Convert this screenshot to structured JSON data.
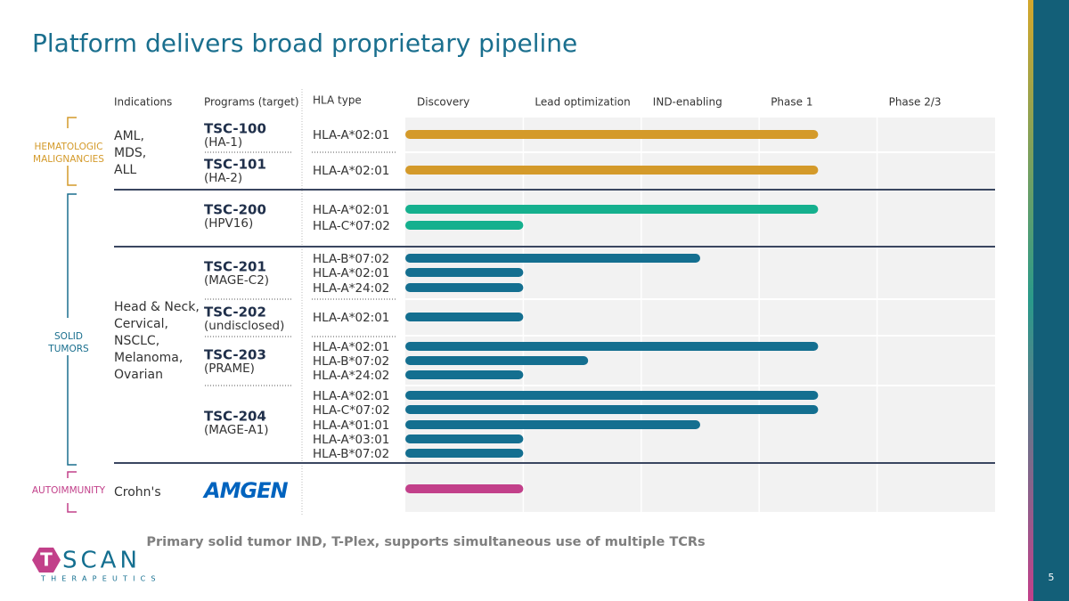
{
  "title": "Platform delivers broad proprietary pipeline",
  "headers": [
    "Indications",
    "Programs (target)",
    "HLA type"
  ],
  "phases": [
    "Discovery",
    "Lead optimization",
    "IND-enabling",
    "Phase 1",
    "Phase 2/3"
  ],
  "areas": [
    {
      "lines": [
        "HEMATOLOGIC",
        "MALIGNANCIES"
      ],
      "color": "#d49a2a"
    },
    {
      "lines": [
        "SOLID",
        "TUMORS"
      ],
      "color": "#1a6f8e"
    },
    {
      "lines": [
        "AUTOIMMUNITY"
      ],
      "color": "#c2408a"
    }
  ],
  "indications": [
    {
      "lines": [
        "AML,",
        "MDS,",
        "ALL"
      ]
    },
    {
      "lines": [
        "Head & Neck,",
        "Cervical,",
        "NSCLC,",
        "Melanoma,",
        "Ovarian"
      ]
    },
    {
      "lines": [
        "Crohn's"
      ]
    }
  ],
  "programs": [
    {
      "name": "TSC-100",
      "target": "(HA-1)",
      "color": "#d49a2a",
      "hla": [
        {
          "type": "HLA-A*02:01",
          "progress": 3.5
        }
      ]
    },
    {
      "name": "TSC-101",
      "target": "(HA-2)",
      "color": "#d49a2a",
      "hla": [
        {
          "type": "HLA-A*02:01",
          "progress": 3.5
        }
      ]
    },
    {
      "name": "TSC-200",
      "target": "(HPV16)",
      "color": "#15b08e",
      "hla": [
        {
          "type": "HLA-A*02:01",
          "progress": 3.5
        },
        {
          "type": "HLA-C*07:02",
          "progress": 1
        }
      ]
    },
    {
      "name": "TSC-201",
      "target": "(MAGE-C2)",
      "color": "#146f90",
      "hla": [
        {
          "type": "HLA-B*07:02",
          "progress": 2.5
        },
        {
          "type": "HLA-A*02:01",
          "progress": 1
        },
        {
          "type": "HLA-A*24:02",
          "progress": 1
        }
      ]
    },
    {
      "name": "TSC-202",
      "target": "(undisclosed)",
      "color": "#146f90",
      "hla": [
        {
          "type": "HLA-A*02:01",
          "progress": 1
        }
      ]
    },
    {
      "name": "TSC-203",
      "target": "(PRAME)",
      "color": "#146f90",
      "hla": [
        {
          "type": "HLA-A*02:01",
          "progress": 3.5
        },
        {
          "type": "HLA-B*07:02",
          "progress": 1.55
        },
        {
          "type": "HLA-A*24:02",
          "progress": 1
        }
      ]
    },
    {
      "name": "TSC-204",
      "target": "(MAGE-A1)",
      "color": "#146f90",
      "hla": [
        {
          "type": "HLA-A*02:01",
          "progress": 3.5
        },
        {
          "type": "HLA-C*07:02",
          "progress": 3.5
        },
        {
          "type": "HLA-A*01:01",
          "progress": 2.5
        },
        {
          "type": "HLA-A*03:01",
          "progress": 1
        },
        {
          "type": "HLA-B*07:02",
          "progress": 1
        }
      ]
    },
    {
      "partner": "AMGEN",
      "color": "#c2408a",
      "hla": [
        {
          "progress": 1
        }
      ]
    }
  ],
  "footnote": "Primary solid tumor IND, T-Plex, supports simultaneous use of multiple TCRs",
  "logo": {
    "mark": "T",
    "word": "SCAN",
    "sub": "THERAPEUTICS"
  },
  "page": "5"
}
